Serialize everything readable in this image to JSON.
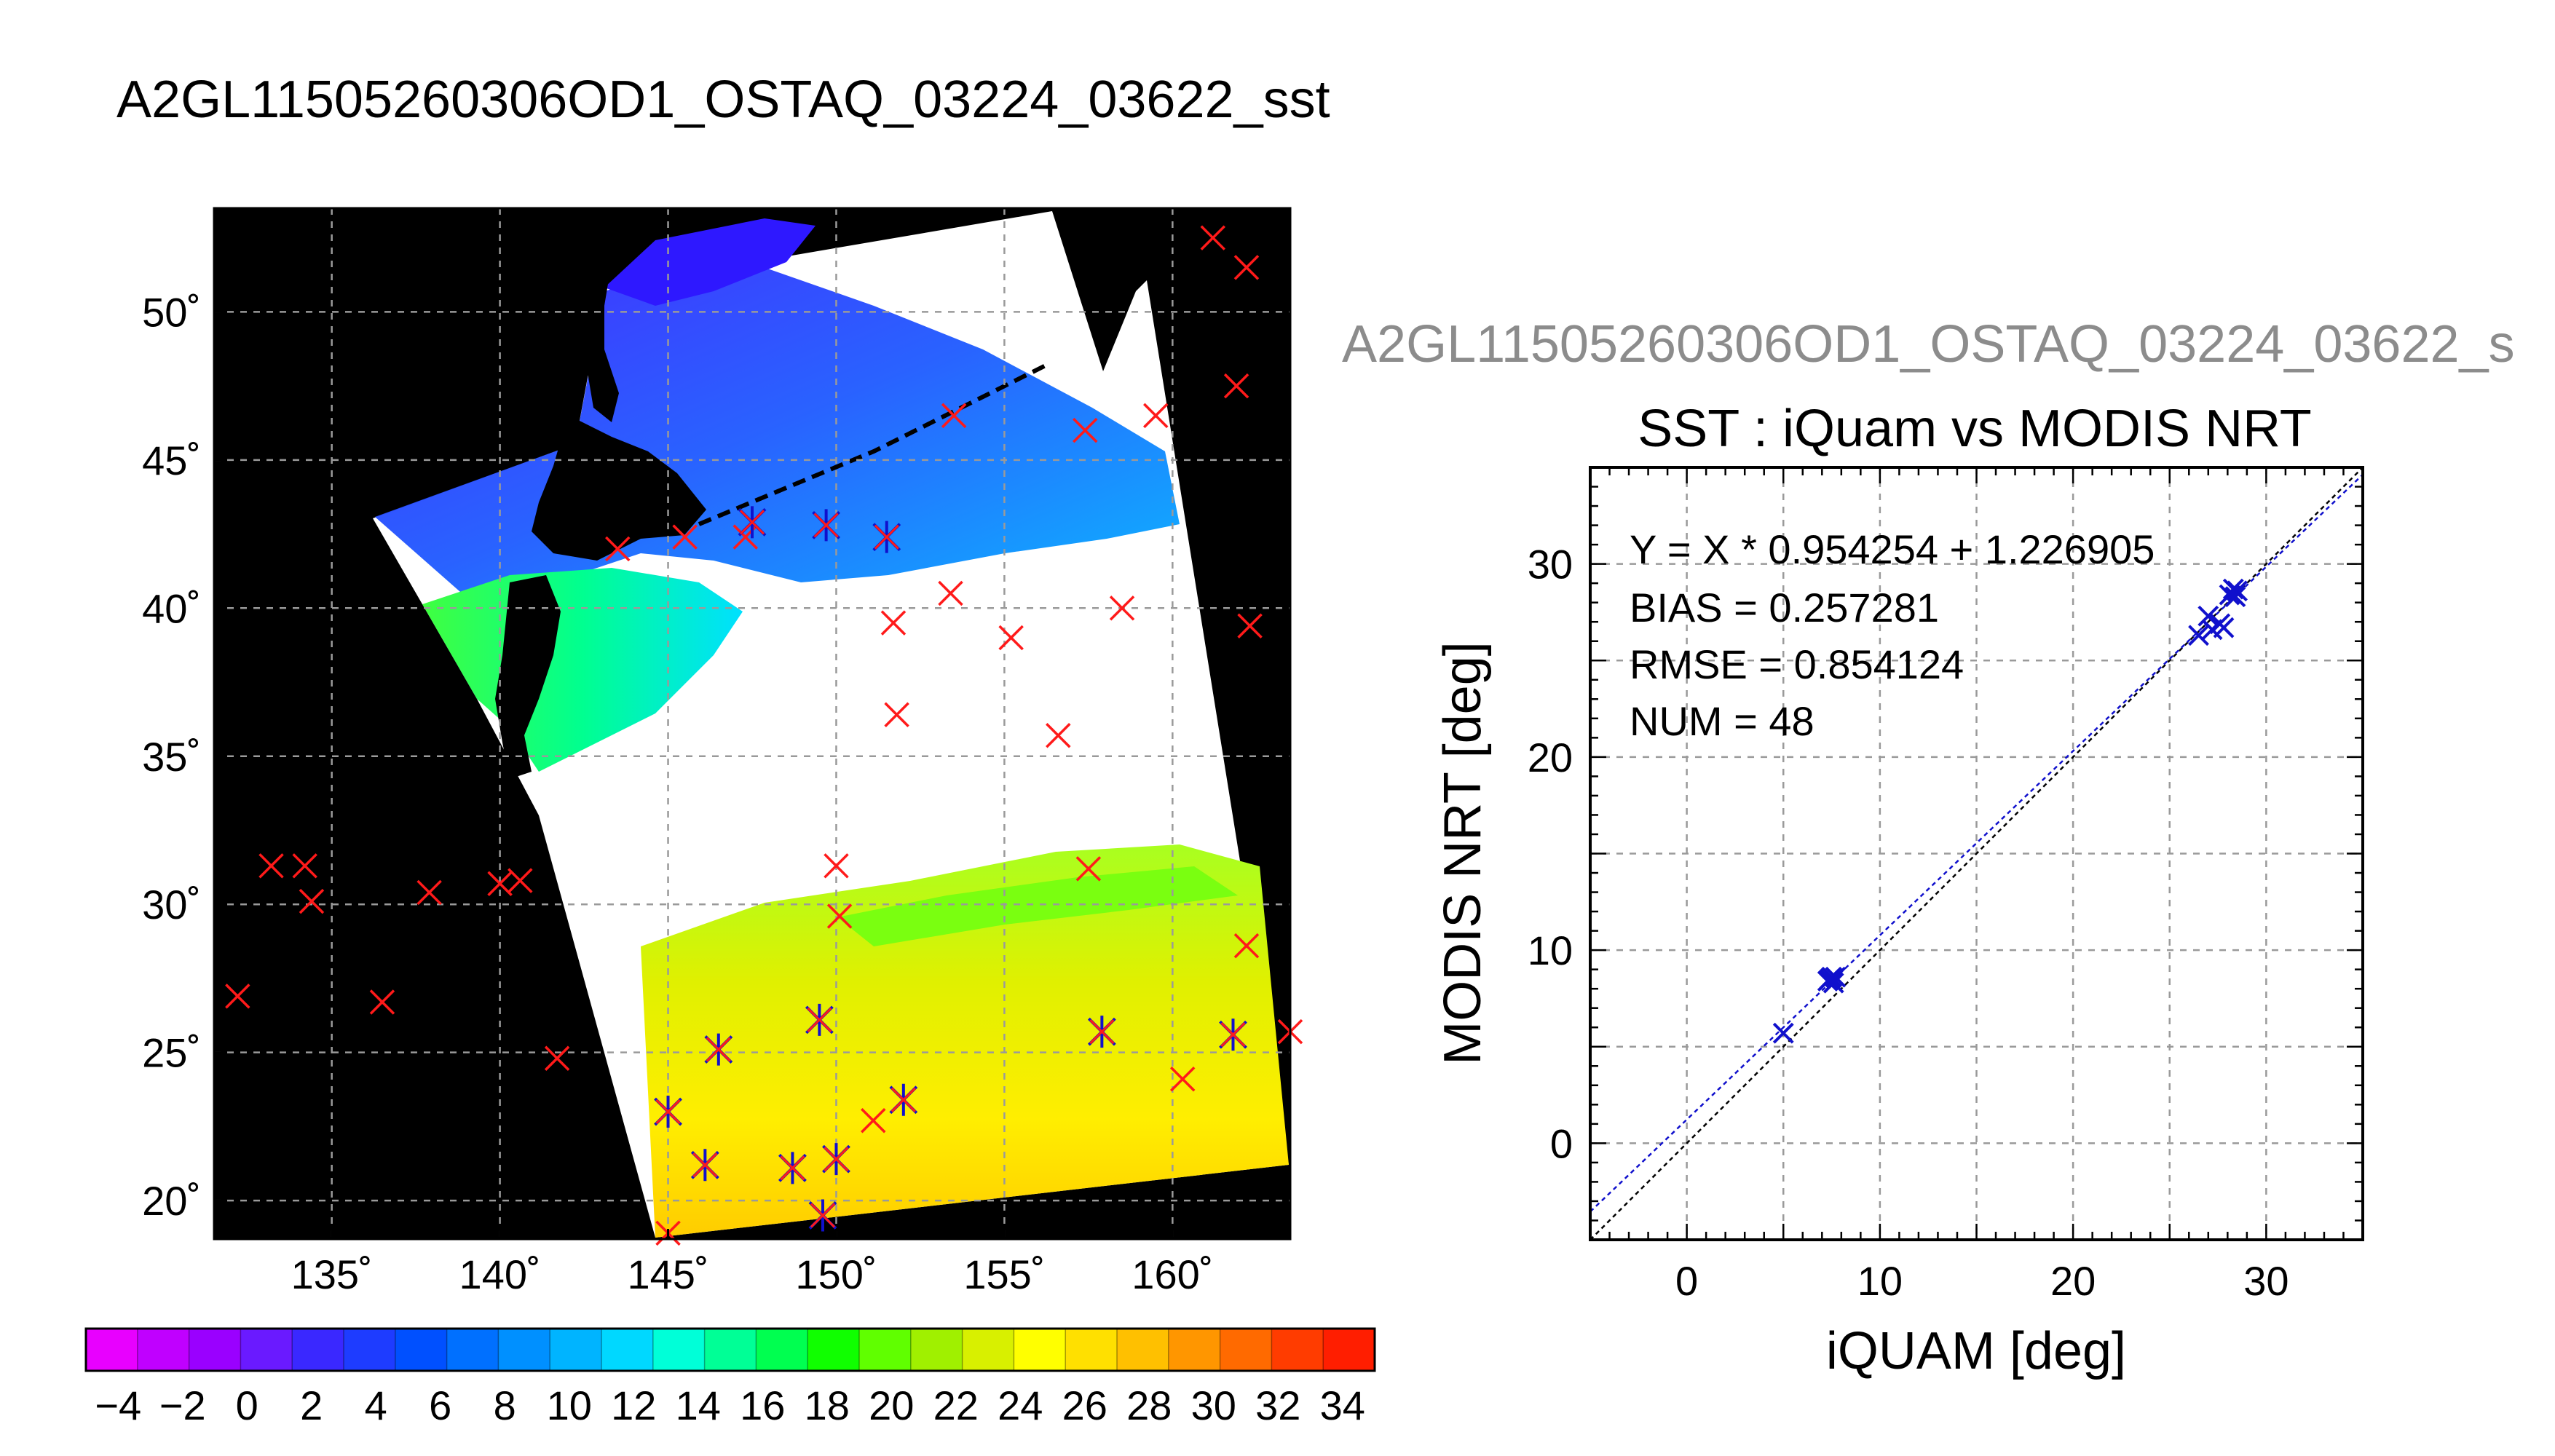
{
  "page_title": "A2GL11505260306OD1_OSTAQ_03224_03622_sst",
  "chart_data": [
    {
      "type": "map",
      "lon_ticks": [
        135,
        140,
        145,
        150,
        155,
        160
      ],
      "lon_tick_labels": [
        "135˚",
        "140˚",
        "145˚",
        "150˚",
        "155˚",
        "160˚"
      ],
      "lat_ticks": [
        20,
        25,
        30,
        35,
        40,
        45,
        50
      ],
      "lat_tick_labels": [
        "20˚",
        "25˚",
        "30˚",
        "35˚",
        "40˚",
        "45˚",
        "50˚"
      ],
      "xlim": [
        131.5,
        163.5
      ],
      "ylim": [
        18.7,
        53.5
      ],
      "grid": true,
      "marker_color": "#ff1a1a",
      "matched_marker_color": "#1010cc",
      "buoys_unmatched": [
        [
          161.2,
          52.5
        ],
        [
          162.2,
          51.5
        ],
        [
          161.9,
          47.5
        ],
        [
          159.5,
          46.5
        ],
        [
          157.4,
          46.0
        ],
        [
          153.5,
          46.5
        ],
        [
          145.5,
          42.4
        ],
        [
          143.5,
          42.0
        ],
        [
          147.3,
          42.4
        ],
        [
          153.4,
          40.5
        ],
        [
          151.7,
          39.5
        ],
        [
          155.2,
          39.0
        ],
        [
          158.5,
          40.0
        ],
        [
          162.3,
          39.4
        ],
        [
          151.8,
          36.4
        ],
        [
          156.6,
          35.7
        ],
        [
          133.2,
          31.3
        ],
        [
          134.2,
          31.3
        ],
        [
          134.4,
          30.1
        ],
        [
          137.9,
          30.4
        ],
        [
          140.0,
          30.7
        ],
        [
          140.6,
          30.8
        ],
        [
          150.0,
          31.3
        ],
        [
          150.1,
          29.6
        ],
        [
          157.5,
          31.2
        ],
        [
          162.2,
          28.6
        ],
        [
          132.2,
          26.9
        ],
        [
          136.5,
          26.7
        ],
        [
          141.7,
          24.8
        ],
        [
          160.3,
          24.1
        ],
        [
          163.5,
          25.7
        ],
        [
          151.1,
          22.7
        ],
        [
          145.0,
          18.9
        ]
      ],
      "buoys_matched": [
        [
          147.5,
          42.9
        ],
        [
          149.7,
          42.8
        ],
        [
          151.5,
          42.4
        ],
        [
          149.5,
          26.1
        ],
        [
          146.5,
          25.1
        ],
        [
          157.9,
          25.7
        ],
        [
          161.8,
          25.6
        ],
        [
          145.0,
          23.0
        ],
        [
          152.0,
          23.4
        ],
        [
          146.1,
          21.2
        ],
        [
          148.7,
          21.1
        ],
        [
          150.0,
          21.4
        ],
        [
          149.6,
          19.5
        ]
      ],
      "colorbar": {
        "min": -5,
        "max": 35,
        "tick_labels": [
          "−4",
          "−2",
          "0",
          "2",
          "4",
          "6",
          "8",
          "10",
          "12",
          "14",
          "16",
          "18",
          "20",
          "22",
          "24",
          "26",
          "28",
          "30",
          "32",
          "34"
        ],
        "colors": [
          "#e800ff",
          "#c000ff",
          "#9a00ff",
          "#6a1aff",
          "#3a28ff",
          "#1e3cff",
          "#0050ff",
          "#0070ff",
          "#0090ff",
          "#00b4ff",
          "#00d8ff",
          "#00ffd8",
          "#00ff96",
          "#00ff50",
          "#10ff00",
          "#60ff00",
          "#a0f000",
          "#d8f000",
          "#ffff00",
          "#ffe000",
          "#ffc000",
          "#ff9600",
          "#ff6a00",
          "#ff3c00",
          "#ff1e00"
        ]
      }
    },
    {
      "type": "scatter",
      "title": "SST : iQuam vs MODIS NRT",
      "subtitle": "A2GL11505260306OD1_OSTAQ_03224_03622_s",
      "xlabel": "iQUAM [deg]",
      "ylabel": "MODIS NRT [deg]",
      "xlim": [
        -5,
        35
      ],
      "ylim": [
        -5,
        35
      ],
      "xticks": [
        0,
        10,
        20,
        30
      ],
      "yticks": [
        0,
        10,
        20,
        30
      ],
      "grid": true,
      "stats": {
        "line1": "Y = X * 0.954254 + 1.226905",
        "line2": "BIAS = 0.257281",
        "line3": "RMSE = 0.854124",
        "line4": "NUM = 48"
      },
      "fit": {
        "slope": 0.954254,
        "intercept": 1.226905,
        "color": "#1010cc"
      },
      "identity_line_color": "#000000",
      "marker_color": "#1010cc",
      "points": [
        [
          5.0,
          5.7
        ],
        [
          7.3,
          8.4
        ],
        [
          7.5,
          8.6
        ],
        [
          7.6,
          8.3
        ],
        [
          7.4,
          8.5
        ],
        [
          7.7,
          8.6
        ],
        [
          26.5,
          26.3
        ],
        [
          27.0,
          27.3
        ],
        [
          27.2,
          26.6
        ],
        [
          27.6,
          26.9
        ],
        [
          27.8,
          26.7
        ],
        [
          28.1,
          28.4
        ],
        [
          28.3,
          28.7
        ],
        [
          28.5,
          28.6
        ],
        [
          28.4,
          28.3
        ]
      ]
    }
  ]
}
